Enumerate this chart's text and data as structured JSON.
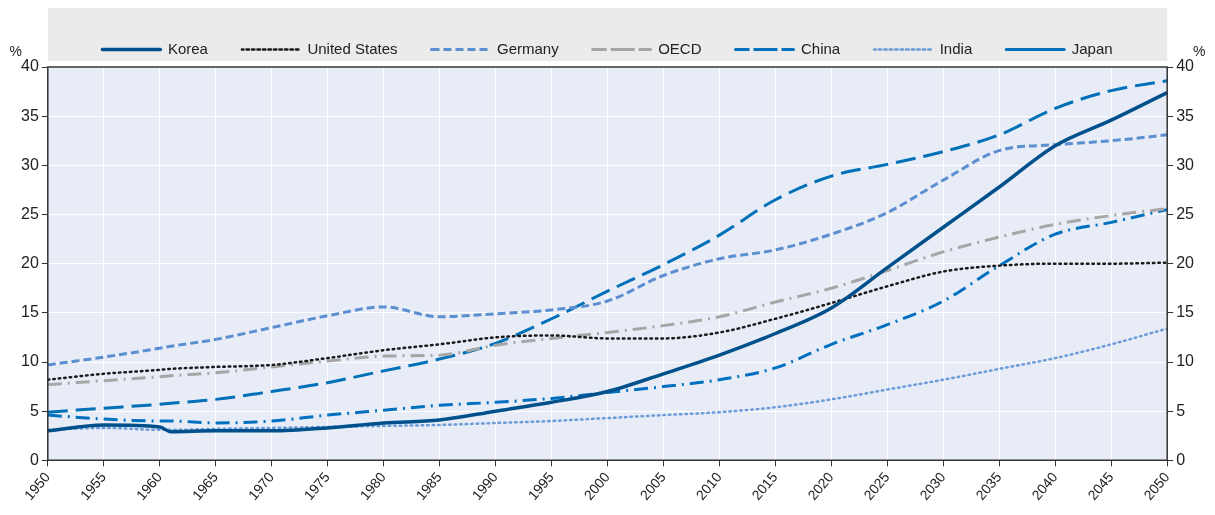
{
  "chart_data": {
    "type": "line",
    "ylabel": "%",
    "y2label": "%",
    "legend": "top",
    "grid": true,
    "x": [
      1950,
      1955,
      1960,
      1961,
      1965,
      1970,
      1975,
      1980,
      1985,
      1990,
      1995,
      2000,
      2005,
      2010,
      2015,
      2020,
      2025,
      2030,
      2035,
      2040,
      2045,
      2050
    ],
    "xlim": [
      1950,
      2050
    ],
    "xticks": [
      1950,
      1955,
      1960,
      1965,
      1970,
      1975,
      1980,
      1985,
      1990,
      1995,
      2000,
      2005,
      2010,
      2015,
      2020,
      2025,
      2030,
      2035,
      2040,
      2045,
      2050
    ],
    "ylim": [
      0,
      40
    ],
    "yticks": [
      0,
      5,
      10,
      15,
      20,
      25,
      30,
      35,
      40
    ],
    "y2lim": [
      0,
      40
    ],
    "y2ticks": [
      0,
      5,
      10,
      15,
      20,
      25,
      30,
      35,
      40
    ],
    "series": [
      {
        "name": "Korea",
        "color": "#00508c",
        "line_style": "solid",
        "values": [
          3.0,
          3.6,
          3.4,
          2.9,
          3.0,
          3.0,
          3.3,
          3.8,
          4.1,
          5.0,
          5.9,
          7.0,
          8.8,
          10.7,
          12.9,
          15.5,
          19.6,
          23.7,
          27.8,
          32.0,
          34.6,
          37.4
        ]
      },
      {
        "name": "United States",
        "color": "#1a1a1a",
        "line_style": "dotted",
        "values": [
          8.2,
          8.8,
          9.2,
          9.3,
          9.5,
          9.7,
          10.4,
          11.2,
          11.8,
          12.5,
          12.7,
          12.4,
          12.4,
          13.0,
          14.4,
          16.0,
          17.7,
          19.2,
          19.8,
          20.0,
          20.0,
          20.1
        ]
      },
      {
        "name": "Germany",
        "color": "#5b8fd0",
        "line_style": "dashed",
        "values": [
          9.7,
          10.5,
          11.4,
          11.6,
          12.3,
          13.5,
          14.7,
          15.6,
          14.6,
          14.9,
          15.3,
          16.2,
          18.8,
          20.5,
          21.4,
          23.0,
          25.2,
          28.5,
          31.5,
          32.1,
          32.5,
          33.1
        ]
      },
      {
        "name": "OECD",
        "color": "#a6a6a6",
        "line_style": "dashdot",
        "values": [
          7.7,
          8.1,
          8.5,
          8.6,
          8.9,
          9.5,
          10.1,
          10.6,
          10.7,
          11.7,
          12.4,
          13.0,
          13.7,
          14.6,
          16.1,
          17.5,
          19.3,
          21.2,
          22.7,
          24.0,
          24.9,
          25.6
        ]
      },
      {
        "name": "China",
        "color": "#0070c0",
        "line_style": "dashdot",
        "values": [
          4.6,
          4.2,
          4.0,
          4.0,
          3.8,
          4.0,
          4.6,
          5.1,
          5.6,
          5.9,
          6.3,
          6.9,
          7.5,
          8.2,
          9.4,
          11.8,
          13.8,
          16.2,
          19.8,
          23.0,
          24.2,
          25.5
        ]
      },
      {
        "name": "India",
        "color": "#6b9bd8",
        "line_style": "dotted",
        "values": [
          3.1,
          3.3,
          3.1,
          3.1,
          3.2,
          3.3,
          3.4,
          3.5,
          3.6,
          3.8,
          4.0,
          4.3,
          4.6,
          4.9,
          5.4,
          6.2,
          7.2,
          8.2,
          9.3,
          10.4,
          11.8,
          13.4
        ]
      },
      {
        "name": "Japan",
        "color": "#0070b8",
        "line_style": "longdash",
        "values": [
          4.9,
          5.3,
          5.7,
          5.8,
          6.2,
          7.0,
          7.9,
          9.1,
          10.3,
          11.9,
          14.4,
          17.2,
          19.9,
          22.9,
          26.5,
          28.9,
          30.1,
          31.4,
          33.1,
          35.8,
          37.6,
          38.6
        ]
      }
    ]
  }
}
